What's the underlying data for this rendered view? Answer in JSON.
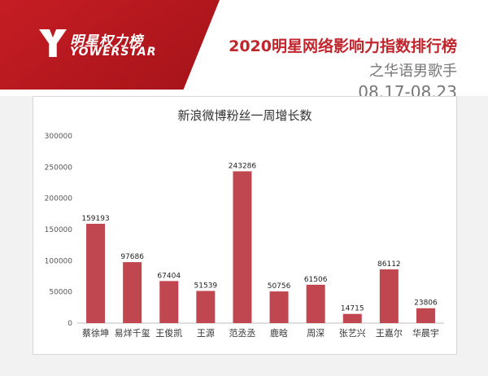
{
  "brand": {
    "logo_cn": "明星权力榜",
    "logo_en": "YOWERSTAR"
  },
  "header": {
    "title": "2020明星网络影响力指数排行榜",
    "subtitle": "之华语男歌手",
    "date_range": "08.17-08.23"
  },
  "colors": {
    "brand_red": "#c0262d",
    "bar": "#c0474f"
  },
  "chart_data": {
    "type": "bar",
    "title": "新浪微博粉丝一周增长数",
    "categories": [
      "蔡徐坤",
      "易烊千玺",
      "王俊凯",
      "王源",
      "范丞丞",
      "鹿晗",
      "周深",
      "张艺兴",
      "王嘉尔",
      "华晨宇"
    ],
    "values": [
      159193,
      97686,
      67404,
      51539,
      243286,
      50756,
      61506,
      14715,
      86112,
      23806
    ],
    "ylim": [
      0,
      300000
    ],
    "yticks": [
      0,
      50000,
      100000,
      150000,
      200000,
      250000,
      300000
    ],
    "grid": false,
    "legend": "none"
  }
}
